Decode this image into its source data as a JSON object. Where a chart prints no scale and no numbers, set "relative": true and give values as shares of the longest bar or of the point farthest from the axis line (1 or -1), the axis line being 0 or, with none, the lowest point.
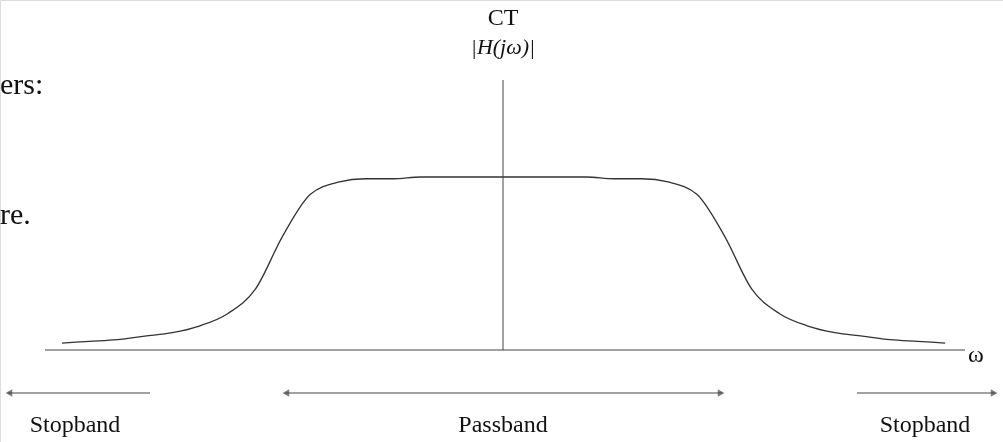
{
  "chart_data": {
    "type": "line",
    "relative": true,
    "title": "CT",
    "xlabel": "ω",
    "categories": [
      null,
      null,
      null,
      null,
      null,
      null,
      null,
      null,
      null,
      null,
      null,
      null,
      null,
      null,
      null,
      null,
      null,
      null,
      null,
      null,
      null,
      null,
      null,
      null,
      null,
      null,
      null,
      null,
      null,
      null,
      null,
      null,
      null
    ],
    "series": [
      {
        "color": "#333333",
        "values": [
          0.04,
          0.05,
          0.06,
          0.08,
          0.1,
          0.14,
          0.21,
          0.35,
          0.66,
          0.9,
          0.97,
          0.99,
          0.99,
          1,
          1,
          1,
          1,
          1,
          1,
          1,
          0.99,
          0.99,
          0.97,
          0.9,
          0.66,
          0.35,
          0.21,
          0.14,
          0.1,
          0.08,
          0.06,
          0.05,
          0.04
        ]
      }
    ],
    "annotations": [
      "|H(jω)|",
      "ers:",
      "re.",
      "Stopband",
      "Passband",
      "Stopband"
    ]
  }
}
